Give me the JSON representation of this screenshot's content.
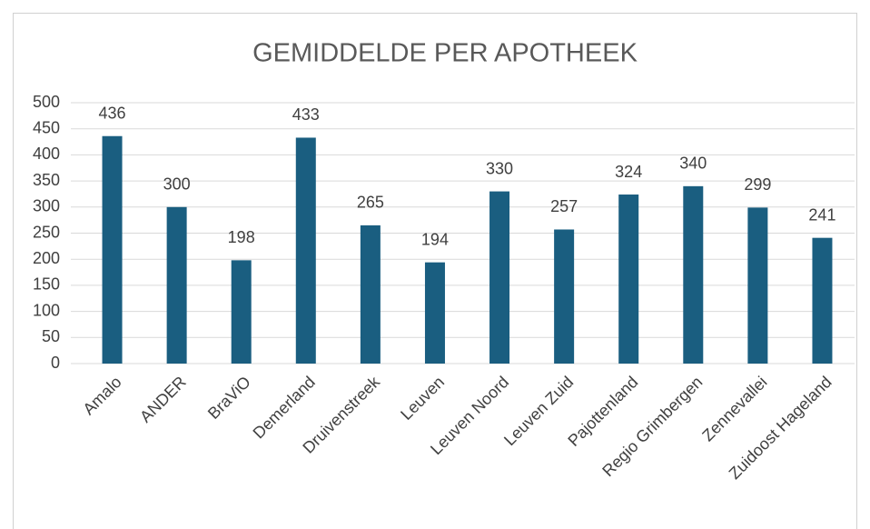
{
  "chart_data": {
    "type": "bar",
    "title": "GEMIDDELDE PER APOTHEEK",
    "categories": [
      "Amalo",
      "ANDER",
      "BraViO",
      "Demerland",
      "Druivenstreek",
      "Leuven",
      "Leuven Noord",
      "Leuven Zuid",
      "Pajottenland",
      "Regio Grimbergen",
      "Zennevallei",
      "Zuidoost Hageland"
    ],
    "values": [
      436,
      300,
      198,
      433,
      265,
      194,
      330,
      257,
      324,
      340,
      299,
      241
    ],
    "color": "#1a5e80",
    "ylim": [
      0,
      500
    ],
    "yticks": [
      0,
      50,
      100,
      150,
      200,
      250,
      300,
      350,
      400,
      450,
      500
    ],
    "grid": true
  }
}
